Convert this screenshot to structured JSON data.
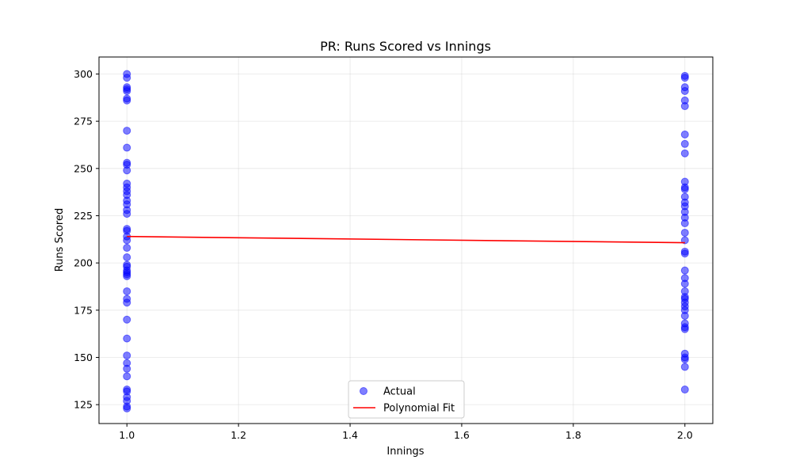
{
  "chart_data": {
    "type": "scatter",
    "title": "PR: Runs Scored vs Innings",
    "xlabel": "Innings",
    "ylabel": "Runs Scored",
    "xlim": [
      0.95,
      2.05
    ],
    "ylim": [
      115,
      309
    ],
    "xticks": [
      1.0,
      1.2,
      1.4,
      1.6,
      1.8,
      2.0
    ],
    "xtick_labels": [
      "1.0",
      "1.2",
      "1.4",
      "1.6",
      "1.8",
      "2.0"
    ],
    "yticks": [
      125,
      150,
      175,
      200,
      225,
      250,
      275,
      300
    ],
    "ytick_labels": [
      "125",
      "150",
      "175",
      "200",
      "225",
      "250",
      "275",
      "300"
    ],
    "grid": true,
    "legend_position": "bottom-center",
    "series": [
      {
        "name": "Actual",
        "kind": "scatter",
        "color": "#0000ff",
        "points": [
          {
            "x": 1,
            "y": 300
          },
          {
            "x": 1,
            "y": 298
          },
          {
            "x": 1,
            "y": 293
          },
          {
            "x": 1,
            "y": 292
          },
          {
            "x": 1,
            "y": 291
          },
          {
            "x": 1,
            "y": 287
          },
          {
            "x": 1,
            "y": 286
          },
          {
            "x": 1,
            "y": 270
          },
          {
            "x": 1,
            "y": 261
          },
          {
            "x": 1,
            "y": 253
          },
          {
            "x": 1,
            "y": 252
          },
          {
            "x": 1,
            "y": 249
          },
          {
            "x": 1,
            "y": 242
          },
          {
            "x": 1,
            "y": 240
          },
          {
            "x": 1,
            "y": 238
          },
          {
            "x": 1,
            "y": 236
          },
          {
            "x": 1,
            "y": 233
          },
          {
            "x": 1,
            "y": 231
          },
          {
            "x": 1,
            "y": 228
          },
          {
            "x": 1,
            "y": 226
          },
          {
            "x": 1,
            "y": 218
          },
          {
            "x": 1,
            "y": 217
          },
          {
            "x": 1,
            "y": 214
          },
          {
            "x": 1,
            "y": 212
          },
          {
            "x": 1,
            "y": 208
          },
          {
            "x": 1,
            "y": 203
          },
          {
            "x": 1,
            "y": 199
          },
          {
            "x": 1,
            "y": 198
          },
          {
            "x": 1,
            "y": 196
          },
          {
            "x": 1,
            "y": 195
          },
          {
            "x": 1,
            "y": 194
          },
          {
            "x": 1,
            "y": 193
          },
          {
            "x": 1,
            "y": 185
          },
          {
            "x": 1,
            "y": 181
          },
          {
            "x": 1,
            "y": 179
          },
          {
            "x": 1,
            "y": 170
          },
          {
            "x": 1,
            "y": 160
          },
          {
            "x": 1,
            "y": 151
          },
          {
            "x": 1,
            "y": 147
          },
          {
            "x": 1,
            "y": 144
          },
          {
            "x": 1,
            "y": 140
          },
          {
            "x": 1,
            "y": 133
          },
          {
            "x": 1,
            "y": 132
          },
          {
            "x": 1,
            "y": 129
          },
          {
            "x": 1,
            "y": 127
          },
          {
            "x": 1,
            "y": 124
          },
          {
            "x": 1,
            "y": 123
          },
          {
            "x": 2,
            "y": 299
          },
          {
            "x": 2,
            "y": 298
          },
          {
            "x": 2,
            "y": 293
          },
          {
            "x": 2,
            "y": 291
          },
          {
            "x": 2,
            "y": 286
          },
          {
            "x": 2,
            "y": 283
          },
          {
            "x": 2,
            "y": 268
          },
          {
            "x": 2,
            "y": 263
          },
          {
            "x": 2,
            "y": 258
          },
          {
            "x": 2,
            "y": 243
          },
          {
            "x": 2,
            "y": 240
          },
          {
            "x": 2,
            "y": 239
          },
          {
            "x": 2,
            "y": 235
          },
          {
            "x": 2,
            "y": 232
          },
          {
            "x": 2,
            "y": 230
          },
          {
            "x": 2,
            "y": 227
          },
          {
            "x": 2,
            "y": 224
          },
          {
            "x": 2,
            "y": 221
          },
          {
            "x": 2,
            "y": 216
          },
          {
            "x": 2,
            "y": 212
          },
          {
            "x": 2,
            "y": 206
          },
          {
            "x": 2,
            "y": 205
          },
          {
            "x": 2,
            "y": 196
          },
          {
            "x": 2,
            "y": 192
          },
          {
            "x": 2,
            "y": 189
          },
          {
            "x": 2,
            "y": 185
          },
          {
            "x": 2,
            "y": 182
          },
          {
            "x": 2,
            "y": 181
          },
          {
            "x": 2,
            "y": 179
          },
          {
            "x": 2,
            "y": 177
          },
          {
            "x": 2,
            "y": 175
          },
          {
            "x": 2,
            "y": 172
          },
          {
            "x": 2,
            "y": 168
          },
          {
            "x": 2,
            "y": 166
          },
          {
            "x": 2,
            "y": 165
          },
          {
            "x": 2,
            "y": 152
          },
          {
            "x": 2,
            "y": 150
          },
          {
            "x": 2,
            "y": 149
          },
          {
            "x": 2,
            "y": 145
          },
          {
            "x": 2,
            "y": 133
          }
        ]
      },
      {
        "name": "Polynomial Fit",
        "kind": "line",
        "color": "#ff0000",
        "points": [
          {
            "x": 1.0,
            "y": 214
          },
          {
            "x": 2.0,
            "y": 210.7
          }
        ]
      }
    ]
  }
}
